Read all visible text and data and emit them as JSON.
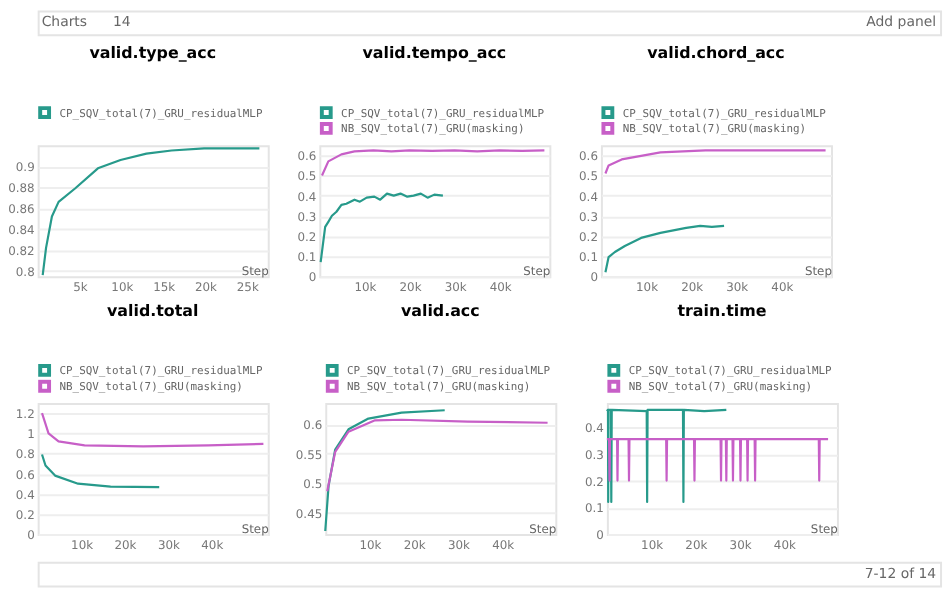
{
  "chart_data": [
    {
      "type": "line",
      "title": "valid.type_acc",
      "xlabel": "Step",
      "annotations": [
        "Charts",
        "14",
        "Add panel"
      ],
      "legend": "top",
      "grid": "y",
      "xlim": [
        0,
        27500
      ],
      "ylim": [
        0.795,
        0.92
      ],
      "xticks": [
        {
          "value": 5000,
          "label": "5k"
        },
        {
          "value": 10000,
          "label": "10k"
        },
        {
          "value": 15000,
          "label": "15k"
        },
        {
          "value": 20000,
          "label": "20k"
        },
        {
          "value": 25000,
          "label": "25k"
        }
      ],
      "yticks": [
        0.8,
        0.82,
        0.84,
        0.86,
        0.88,
        0.9
      ],
      "series": [
        {
          "name": "CP_SQV_total(7)_GRU_residualMLP",
          "color": "#279a8b",
          "x": [
            600,
            1000,
            1700,
            2500,
            4500,
            7200,
            9900,
            13000,
            16000,
            19900,
            26500
          ],
          "values": [
            0.796,
            0.822,
            0.852,
            0.866,
            0.879,
            0.898,
            0.906,
            0.912,
            0.915,
            0.917,
            0.917
          ]
        }
      ]
    },
    {
      "type": "line",
      "title": "valid.tempo_acc",
      "xlabel": "Step",
      "legend": "top",
      "grid": "y",
      "xlim": [
        0,
        51000
      ],
      "ylim": [
        0,
        0.65
      ],
      "xticks": [
        {
          "value": 10000,
          "label": "10k"
        },
        {
          "value": 20000,
          "label": "20k"
        },
        {
          "value": 30000,
          "label": "30k"
        },
        {
          "value": 40000,
          "label": "40k"
        }
      ],
      "yticks": [
        0,
        0.1,
        0.2,
        0.3,
        0.4,
        0.5,
        0.6
      ],
      "series": [
        {
          "name": "CP_SQV_total(7)_GRU_residualMLP",
          "color": "#279a8b",
          "x": [
            300,
            1300,
            2000,
            2800,
            3800,
            4900,
            6000,
            7800,
            9000,
            10500,
            12200,
            13500,
            15000,
            16500,
            18000,
            19500,
            20900,
            22500,
            24000,
            25500,
            27400
          ],
          "values": [
            0.07,
            0.245,
            0.27,
            0.3,
            0.32,
            0.354,
            0.36,
            0.38,
            0.37,
            0.39,
            0.395,
            0.38,
            0.41,
            0.4,
            0.41,
            0.395,
            0.4,
            0.41,
            0.39,
            0.405,
            0.4
          ]
        },
        {
          "name": "NB_SQV_total(7)_GRU(masking)",
          "color": "#c75fc7",
          "x": [
            600,
            2000,
            4900,
            7800,
            12000,
            16000,
            20000,
            25000,
            30000,
            35000,
            40000,
            45000,
            49900
          ],
          "values": [
            0.5,
            0.57,
            0.605,
            0.62,
            0.625,
            0.62,
            0.625,
            0.622,
            0.625,
            0.62,
            0.625,
            0.622,
            0.625
          ]
        }
      ]
    },
    {
      "type": "line",
      "title": "valid.chord_acc",
      "xlabel": "Step",
      "legend": "top",
      "grid": "y",
      "xlim": [
        0,
        51000
      ],
      "ylim": [
        0,
        0.65
      ],
      "xticks": [
        {
          "value": 10000,
          "label": "10k"
        },
        {
          "value": 20000,
          "label": "20k"
        },
        {
          "value": 30000,
          "label": "30k"
        },
        {
          "value": 40000,
          "label": "40k"
        }
      ],
      "yticks": [
        0,
        0.1,
        0.2,
        0.3,
        0.4,
        0.5,
        0.6
      ],
      "series": [
        {
          "name": "CP_SQV_total(7)_GRU_residualMLP",
          "color": "#279a8b",
          "x": [
            1000,
            1700,
            3100,
            5300,
            8900,
            13200,
            18900,
            22000,
            24600,
            27300
          ],
          "values": [
            0.02,
            0.095,
            0.12,
            0.15,
            0.19,
            0.215,
            0.24,
            0.25,
            0.245,
            0.25
          ]
        },
        {
          "name": "NB_SQV_total(7)_GRU(masking)",
          "color": "#c75fc7",
          "x": [
            1000,
            1700,
            4600,
            13200,
            23200,
            35000,
            49800
          ],
          "values": [
            0.51,
            0.55,
            0.58,
            0.615,
            0.625,
            0.625,
            0.625
          ]
        }
      ]
    },
    {
      "type": "line",
      "title": "valid.total",
      "xlabel": "Step",
      "legend": "top",
      "grid": "y",
      "xlim": [
        0,
        53000
      ],
      "ylim": [
        0,
        1.3
      ],
      "xticks": [
        {
          "value": 10000,
          "label": "10k"
        },
        {
          "value": 20000,
          "label": "20k"
        },
        {
          "value": 30000,
          "label": "30k"
        },
        {
          "value": 40000,
          "label": "40k"
        }
      ],
      "yticks": [
        0,
        0.2,
        0.4,
        0.6,
        0.8,
        1,
        1.2
      ],
      "series": [
        {
          "name": "CP_SQV_total(7)_GRU_residualMLP",
          "color": "#279a8b",
          "x": [
            1000,
            1800,
            4000,
            9300,
            16800,
            28000
          ],
          "values": [
            0.79,
            0.68,
            0.58,
            0.5,
            0.47,
            0.465
          ]
        },
        {
          "name": "NB_SQV_total(7)_GRU(masking)",
          "color": "#c75fc7",
          "x": [
            1000,
            2500,
            4800,
            10800,
            24300,
            39300,
            52000
          ],
          "values": [
            1.2,
            1.0,
            0.92,
            0.88,
            0.87,
            0.88,
            0.895
          ]
        }
      ]
    },
    {
      "type": "line",
      "title": "valid.acc",
      "xlabel": "Step",
      "legend": "top",
      "grid": "y",
      "xlim": [
        0,
        52000
      ],
      "ylim": [
        0.415,
        0.635
      ],
      "xticks": [
        {
          "value": 10000,
          "label": "10k"
        },
        {
          "value": 20000,
          "label": "20k"
        },
        {
          "value": 30000,
          "label": "30k"
        },
        {
          "value": 40000,
          "label": "40k"
        }
      ],
      "yticks": [
        0.45,
        0.5,
        0.55,
        0.6
      ],
      "series": [
        {
          "name": "CP_SQV_total(7)_GRU_residualMLP",
          "color": "#279a8b",
          "x": [
            0,
            750,
            2250,
            5250,
            9750,
            17250,
            27000
          ],
          "values": [
            0.42,
            0.496,
            0.557,
            0.591,
            0.609,
            0.619,
            0.623
          ]
        },
        {
          "name": "NB_SQV_total(7)_GRU(masking)",
          "color": "#c75fc7",
          "x": [
            450,
            2250,
            5250,
            11250,
            17250,
            32250,
            50250
          ],
          "values": [
            0.487,
            0.553,
            0.587,
            0.606,
            0.607,
            0.604,
            0.602
          ]
        }
      ]
    },
    {
      "type": "line",
      "title": "train.time",
      "xlabel": "Step",
      "annotations": [
        "7-12 of 14"
      ],
      "legend": "top",
      "grid": "y",
      "xlim": [
        0,
        52000
      ],
      "ylim": [
        0,
        0.49
      ],
      "xticks": [
        {
          "value": 10000,
          "label": "10k"
        },
        {
          "value": 20000,
          "label": "20k"
        },
        {
          "value": 30000,
          "label": "30k"
        },
        {
          "value": 40000,
          "label": "40k"
        }
      ],
      "yticks": [
        0,
        0.1,
        0.2,
        0.3,
        0.4
      ],
      "series": [
        {
          "name": "CP_SQV_total(7)_GRU_residualMLP",
          "color": "#279a8b",
          "x": [
            0,
            250,
            300,
            350,
            900,
            1000,
            1100,
            9000,
            9100,
            9200,
            17200,
            17300,
            17400,
            22000,
            27000
          ],
          "values": [
            0.46,
            0.465,
            0.12,
            0.465,
            0.465,
            0.12,
            0.465,
            0.46,
            0.12,
            0.465,
            0.465,
            0.12,
            0.465,
            0.46,
            0.465
          ]
        },
        {
          "name": "NB_SQV_total(7)_GRU(masking)",
          "color": "#c75fc7",
          "x": [
            0,
            500,
            600,
            700,
            2300,
            2400,
            2500,
            4900,
            5000,
            5100,
            13400,
            13500,
            13600,
            19700,
            19800,
            19900,
            25700,
            25800,
            25900,
            26900,
            27000,
            27100,
            28400,
            28500,
            28600,
            30100,
            30200,
            30300,
            31700,
            31800,
            31900,
            33400,
            33500,
            33600,
            47900,
            48000,
            48100,
            50000
          ],
          "values": [
            0.355,
            0.355,
            0.2,
            0.355,
            0.355,
            0.2,
            0.355,
            0.355,
            0.2,
            0.355,
            0.355,
            0.2,
            0.355,
            0.355,
            0.2,
            0.355,
            0.355,
            0.2,
            0.355,
            0.355,
            0.2,
            0.355,
            0.355,
            0.2,
            0.355,
            0.355,
            0.2,
            0.355,
            0.355,
            0.2,
            0.355,
            0.355,
            0.2,
            0.355,
            0.355,
            0.2,
            0.355,
            0.355
          ]
        }
      ]
    }
  ]
}
